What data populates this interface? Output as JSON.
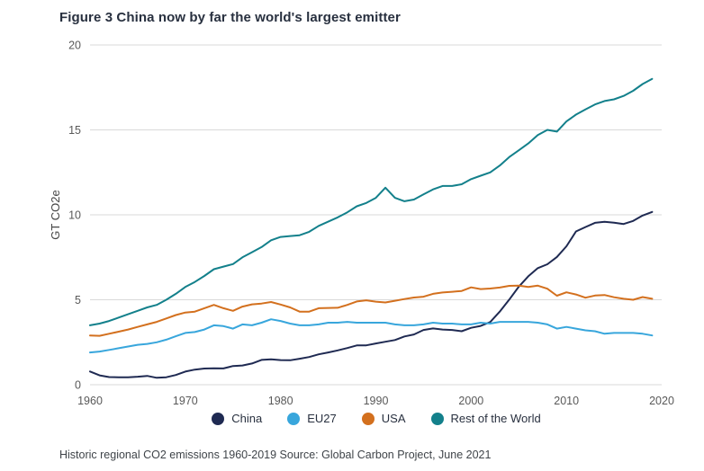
{
  "title": "Figure 3 China now by far the world's largest emitter",
  "footer": "Historic regional CO2 emissions 1960-2019 Source: Global Carbon Project, June 2021",
  "colors": {
    "grid": "#d9d9d9",
    "tick_label": "#595959",
    "axis_title": "#444444",
    "title_text": "#28303f"
  },
  "chart_data": {
    "type": "line",
    "title": "Figure 3 China now by far the world's largest emitter",
    "xlabel": "",
    "ylabel": "GT CO2e",
    "ylim": [
      0,
      20
    ],
    "xlim": [
      1960,
      2020
    ],
    "y_ticks": [
      0,
      5,
      10,
      15,
      20
    ],
    "x_ticks": [
      1960,
      1970,
      1980,
      1990,
      2000,
      2010,
      2020
    ],
    "grid": "horizontal",
    "legend_position": "bottom",
    "x": [
      1960,
      1961,
      1962,
      1963,
      1964,
      1965,
      1966,
      1967,
      1968,
      1969,
      1970,
      1971,
      1972,
      1973,
      1974,
      1975,
      1976,
      1977,
      1978,
      1979,
      1980,
      1981,
      1982,
      1983,
      1984,
      1985,
      1986,
      1987,
      1988,
      1989,
      1990,
      1991,
      1992,
      1993,
      1994,
      1995,
      1996,
      1997,
      1998,
      1999,
      2000,
      2001,
      2002,
      2003,
      2004,
      2005,
      2006,
      2007,
      2008,
      2009,
      2010,
      2011,
      2012,
      2013,
      2014,
      2015,
      2016,
      2017,
      2018,
      2019
    ],
    "series": [
      {
        "name": "China",
        "color": "#1f2a52",
        "values": [
          0.78,
          0.55,
          0.45,
          0.44,
          0.44,
          0.47,
          0.52,
          0.41,
          0.44,
          0.57,
          0.77,
          0.89,
          0.95,
          0.97,
          0.96,
          1.1,
          1.13,
          1.25,
          1.46,
          1.49,
          1.45,
          1.44,
          1.53,
          1.63,
          1.79,
          1.9,
          2.02,
          2.16,
          2.31,
          2.32,
          2.43,
          2.53,
          2.63,
          2.84,
          2.96,
          3.22,
          3.31,
          3.25,
          3.22,
          3.15,
          3.35,
          3.46,
          3.69,
          4.3,
          5.01,
          5.77,
          6.38,
          6.86,
          7.09,
          7.52,
          8.15,
          9.02,
          9.28,
          9.53,
          9.59,
          9.54,
          9.46,
          9.64,
          9.96,
          10.17
        ]
      },
      {
        "name": "EU27",
        "color": "#38a6dc",
        "values": [
          1.9,
          1.95,
          2.05,
          2.15,
          2.25,
          2.35,
          2.4,
          2.5,
          2.65,
          2.85,
          3.05,
          3.1,
          3.25,
          3.5,
          3.45,
          3.3,
          3.55,
          3.5,
          3.65,
          3.85,
          3.75,
          3.6,
          3.5,
          3.5,
          3.55,
          3.65,
          3.65,
          3.7,
          3.65,
          3.65,
          3.65,
          3.65,
          3.55,
          3.5,
          3.5,
          3.55,
          3.65,
          3.6,
          3.6,
          3.55,
          3.55,
          3.65,
          3.6,
          3.7,
          3.7,
          3.7,
          3.7,
          3.65,
          3.55,
          3.3,
          3.4,
          3.3,
          3.2,
          3.15,
          3.0,
          3.05,
          3.05,
          3.05,
          3.0,
          2.9
        ]
      },
      {
        "name": "USA",
        "color": "#d3701e",
        "values": [
          2.9,
          2.88,
          3.0,
          3.12,
          3.25,
          3.4,
          3.55,
          3.7,
          3.9,
          4.1,
          4.25,
          4.3,
          4.5,
          4.7,
          4.5,
          4.35,
          4.6,
          4.73,
          4.78,
          4.87,
          4.72,
          4.55,
          4.3,
          4.3,
          4.5,
          4.52,
          4.53,
          4.7,
          4.9,
          4.97,
          4.89,
          4.84,
          4.94,
          5.04,
          5.13,
          5.18,
          5.35,
          5.43,
          5.47,
          5.52,
          5.73,
          5.63,
          5.66,
          5.72,
          5.82,
          5.83,
          5.75,
          5.83,
          5.65,
          5.24,
          5.44,
          5.31,
          5.12,
          5.25,
          5.28,
          5.15,
          5.06,
          5.0,
          5.16,
          5.06
        ]
      },
      {
        "name": "Rest of the World",
        "color": "#13808b",
        "values": [
          3.5,
          3.6,
          3.75,
          3.95,
          4.15,
          4.35,
          4.55,
          4.7,
          5.0,
          5.35,
          5.75,
          6.05,
          6.4,
          6.8,
          6.95,
          7.1,
          7.5,
          7.8,
          8.1,
          8.5,
          8.7,
          8.75,
          8.8,
          9.0,
          9.35,
          9.6,
          9.85,
          10.15,
          10.5,
          10.7,
          11.0,
          11.6,
          11.0,
          10.8,
          10.9,
          11.2,
          11.5,
          11.7,
          11.7,
          11.8,
          12.1,
          12.3,
          12.5,
          12.9,
          13.4,
          13.8,
          14.2,
          14.7,
          15.0,
          14.9,
          15.5,
          15.9,
          16.2,
          16.5,
          16.7,
          16.8,
          17.0,
          17.3,
          17.7,
          18.0
        ]
      }
    ]
  }
}
